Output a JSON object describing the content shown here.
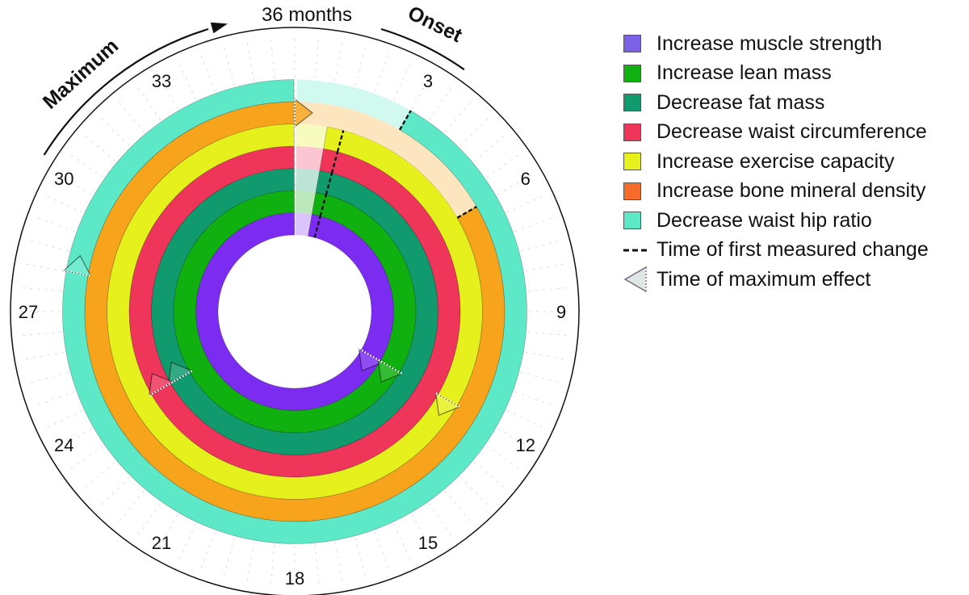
{
  "chart_data": {
    "type": "radial-timeline",
    "title": "36 months",
    "axis_ticks": [
      "3",
      "6",
      "9",
      "12",
      "15",
      "18",
      "21",
      "24",
      "27",
      "30",
      "33"
    ],
    "arc_labels": {
      "onset": "Onset",
      "maximum": "Maximum"
    },
    "x_unit": "months",
    "xlim": [
      0,
      36
    ],
    "series": [
      {
        "name": "Increase muscle strength",
        "color": "#7b2cf0",
        "first_change_months": 0,
        "max_effect_months": 12
      },
      {
        "name": "Increase lean mass",
        "color": "#10b010",
        "first_change_months": 0,
        "max_effect_months": 12
      },
      {
        "name": "Decrease fat mass",
        "color": "#119a6e",
        "first_change_months": 0,
        "max_effect_months": 24
      },
      {
        "name": "Decrease waist circumference",
        "color": "#f0355a",
        "first_change_months": 0,
        "max_effect_months": 24
      },
      {
        "name": "Increase exercise capacity",
        "color": "#e5f01c",
        "first_change_months": 0,
        "max_effect_months": 12
      },
      {
        "name": "Increase bone mineral density",
        "color": "#f8a31c",
        "first_change_months": 6,
        "max_effect_months": 36
      },
      {
        "name": "Decrease waist hip ratio",
        "color": "#5de8c8",
        "first_change_months": 3,
        "max_effect_months": 28
      }
    ]
  },
  "legend": {
    "items": [
      {
        "label": "Increase muscle strength",
        "color": "#7b60e8"
      },
      {
        "label": "Increase lean mass",
        "color": "#10b010"
      },
      {
        "label": "Decrease fat mass",
        "color": "#119a6e"
      },
      {
        "label": "Decrease waist circumference",
        "color": "#f0355a"
      },
      {
        "label": "Increase exercise capacity",
        "color": "#e5f01c"
      },
      {
        "label": "Increase bone mineral density",
        "color": "#f66a2a"
      },
      {
        "label": "Decrease waist hip ratio",
        "color": "#5de8c8"
      }
    ],
    "first_change_label": "Time of first measured change",
    "max_effect_label": "Time of maximum effect"
  }
}
